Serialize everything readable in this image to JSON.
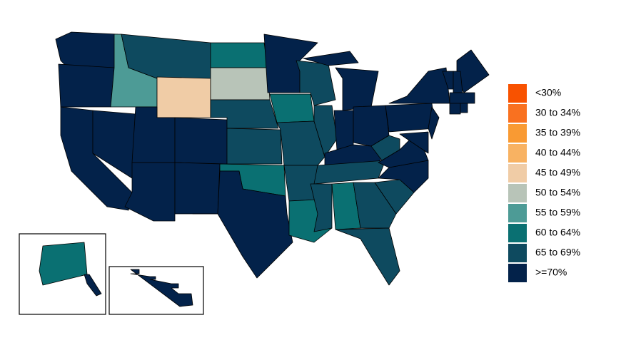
{
  "legend": [
    {
      "label": "<30%",
      "color": "#f85200"
    },
    {
      "label": "30 to 34%",
      "color": "#f97120"
    },
    {
      "label": "35 to 39%",
      "color": "#f99a33"
    },
    {
      "label": "40 to 44%",
      "color": "#f8b262"
    },
    {
      "label": "45 to 49%",
      "color": "#f0cca6"
    },
    {
      "label": "50 to 54%",
      "color": "#b8c4b8"
    },
    {
      "label": "55 to 59%",
      "color": "#4d9b96"
    },
    {
      "label": "60 to 64%",
      "color": "#0a7072"
    },
    {
      "label": "65 to 69%",
      "color": "#0e4a5f"
    },
    {
      "label": ">=70%",
      "color": "#03224a"
    }
  ],
  "state_colors": [
    "#03224a",
    "#03224a",
    "#03224a",
    "#03224a",
    "#4d9b96",
    "#0e4a5f",
    "#f0cca6",
    "#03224a",
    "#03224a",
    "#03224a",
    "#03224a",
    "#0a7072",
    "#b8c4b8",
    "#0e4a5f",
    "#0e4a5f",
    "#0a7072",
    "#03224a",
    "#03224a",
    "#0a7072",
    "#0e4a5f",
    "#0e4a5f",
    "#0a7072",
    "#0e4a5f",
    "#0e4a5f",
    "#03224a",
    "#03224a",
    "#03224a",
    "#03224a",
    "#03224a",
    "#0e4a5f",
    "#0e4a5f",
    "#0a7072",
    "#0e4a5f",
    "#0e4a5f",
    "#0e4a5f",
    "#03224a",
    "#03224a",
    "#0e4a5f",
    "#03224a",
    "#03224a",
    "#03224a",
    "#03224a",
    "#03224a",
    "#03224a",
    "#03224a",
    "#03224a",
    "#03224a",
    "#03224a",
    "#0a7072",
    "#03224a",
    "#03224a"
  ]
}
